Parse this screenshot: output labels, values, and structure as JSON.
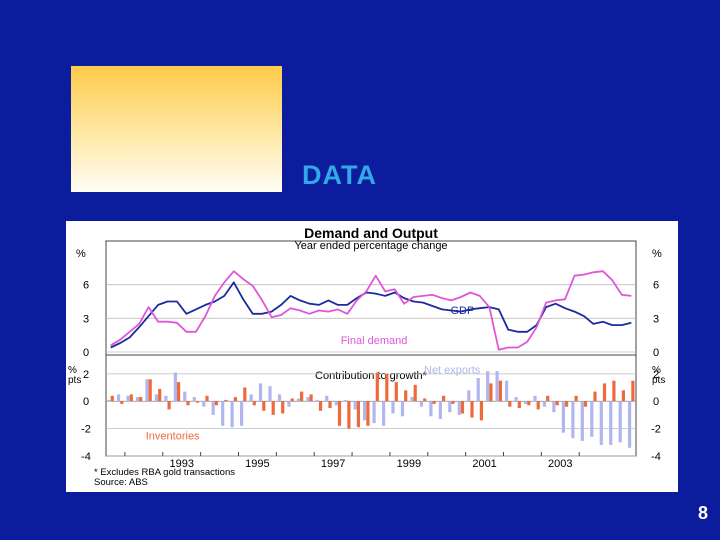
{
  "slide": {
    "title": "DATA",
    "page_number": "8",
    "colors": {
      "background": "#0b1c9c",
      "title": "#31a8e8",
      "gradient_top": "#ffcb4a",
      "gradient_bottom": "#fffdf4"
    }
  },
  "chart_data": [
    {
      "type": "line",
      "title": "Demand and Output",
      "subtitle": "Year ended percentage change",
      "unit_left": "%",
      "unit_right": "%",
      "ylim": [
        0,
        9
      ],
      "yticks": [
        0,
        3,
        6
      ],
      "x_start": 1991.5,
      "x_step": 0.25,
      "grid": true,
      "series": [
        {
          "name": "GDP",
          "color": "#1a2b9c",
          "values": [
            0.4,
            0.8,
            1.3,
            2.2,
            3.2,
            4.2,
            4.5,
            4.5,
            3.4,
            3.8,
            4.2,
            4.5,
            5.0,
            6.2,
            4.7,
            3.4,
            3.4,
            3.6,
            4.2,
            5.0,
            4.6,
            4.3,
            4.2,
            4.6,
            4.2,
            4.2,
            4.8,
            5.3,
            5.2,
            5.0,
            5.3,
            4.8,
            4.5,
            4.4,
            4.1,
            3.8,
            3.7,
            3.6,
            3.8,
            3.9,
            4.0,
            3.8,
            2.0,
            1.8,
            1.8,
            2.4,
            4.0,
            4.3,
            3.9,
            3.6,
            3.2,
            2.5,
            2.7,
            2.4,
            2.4,
            2.6
          ]
        },
        {
          "name": "Final demand",
          "color": "#e056d9",
          "values": [
            0.6,
            1.1,
            1.8,
            2.5,
            4.0,
            2.7,
            2.7,
            2.6,
            1.8,
            1.8,
            3.2,
            5.0,
            6.2,
            7.2,
            6.5,
            5.9,
            4.6,
            3.1,
            3.3,
            3.9,
            3.7,
            3.4,
            3.7,
            3.6,
            3.8,
            3.4,
            4.6,
            5.4,
            6.8,
            5.4,
            5.6,
            4.3,
            4.9,
            5.0,
            5.1,
            4.8,
            4.6,
            4.9,
            5.3,
            5.0,
            4.0,
            0.2,
            0.4,
            0.4,
            0.9,
            2.2,
            4.4,
            4.6,
            4.7,
            6.8,
            6.9,
            7.1,
            7.2,
            6.4,
            5.1,
            5.0
          ]
        }
      ],
      "annotations": [
        {
          "text": "GDP",
          "x": 2000.6,
          "y": 3.4
        },
        {
          "text": "Final demand",
          "x": 1997.7,
          "y": 0.7
        }
      ]
    },
    {
      "type": "bar",
      "title": "Contribution to growth*",
      "unit_left": "% pts",
      "unit_right": "% pts",
      "ylim": [
        -4,
        2.5
      ],
      "yticks": [
        -4,
        -2,
        0,
        2
      ],
      "x_start": 1991.5,
      "x_step": 0.25,
      "grid": true,
      "xticks": [
        1993,
        1995,
        1997,
        1999,
        2001,
        2003
      ],
      "series": [
        {
          "name": "Net exports",
          "color": "#b0b6ef",
          "values": [
            0.1,
            0.5,
            0.4,
            0.3,
            1.6,
            0.5,
            0.4,
            2.1,
            0.7,
            0.3,
            -0.4,
            -1.0,
            -1.8,
            -1.9,
            -1.8,
            0.5,
            1.3,
            1.1,
            0.5,
            -0.4,
            0.2,
            0.3,
            0.1,
            0.4,
            -0.3,
            0.1,
            -0.6,
            -1.4,
            -1.6,
            -1.8,
            -0.9,
            -1.1,
            0.3,
            -0.4,
            -1.1,
            -1.3,
            -0.8,
            -1.0,
            0.8,
            1.7,
            2.2,
            2.2,
            1.5,
            0.3,
            -0.2,
            0.4,
            -0.4,
            -0.8,
            -2.3,
            -2.7,
            -2.9,
            -2.6,
            -3.2,
            -3.2,
            -3.0,
            -3.4
          ]
        },
        {
          "name": "Inventories",
          "color": "#ef6a3a",
          "values": [
            0.4,
            -0.2,
            0.5,
            0.3,
            1.6,
            0.9,
            -0.6,
            1.4,
            -0.3,
            -0.1,
            0.4,
            -0.3,
            0.1,
            0.3,
            1.0,
            -0.3,
            -0.7,
            -1.0,
            -0.9,
            0.2,
            0.7,
            0.5,
            -0.7,
            -0.5,
            -1.8,
            -2.0,
            -1.9,
            -1.8,
            2.1,
            2.0,
            1.4,
            0.8,
            1.2,
            0.2,
            -0.2,
            0.4,
            -0.2,
            -0.9,
            -1.2,
            -1.4,
            1.3,
            1.5,
            -0.4,
            -0.5,
            -0.3,
            -0.6,
            0.4,
            -0.3,
            -0.4,
            0.4,
            -0.4,
            0.7,
            1.3,
            1.5,
            0.8,
            1.5
          ]
        }
      ],
      "annotations": [
        {
          "text": "Net exports",
          "x": 1999.9,
          "y": 2.3
        },
        {
          "text": "Inventories",
          "x": 1992.55,
          "y": -2.5
        }
      ],
      "footnotes": [
        "* Excludes RBA gold transactions",
        "Source: ABS"
      ]
    }
  ]
}
